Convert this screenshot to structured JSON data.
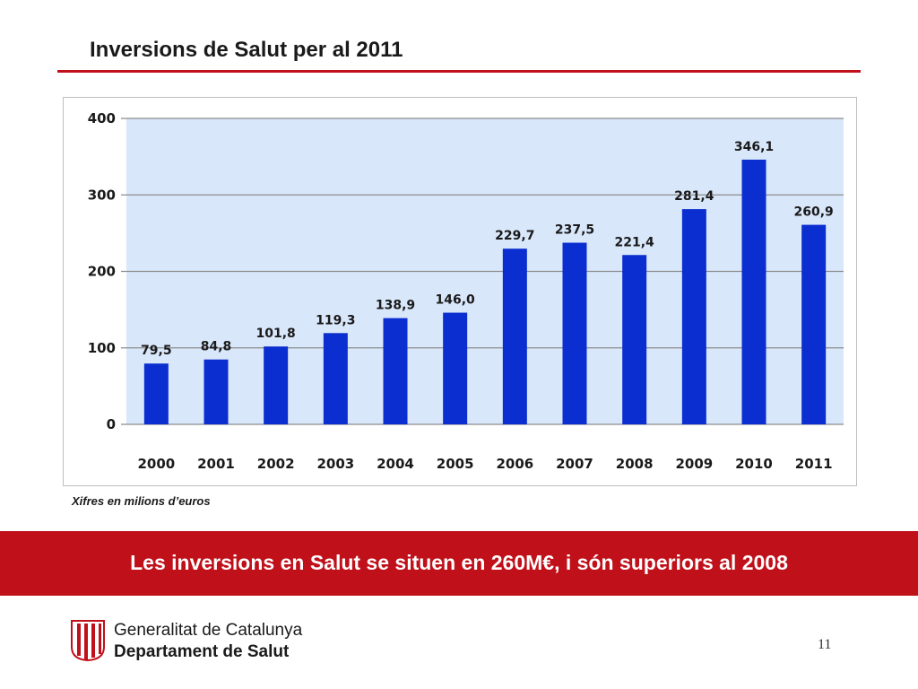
{
  "title": "Inversions de Salut per al 2011",
  "colors": {
    "accent": "#c0101a",
    "bar": "#0a2ecf",
    "plot_background": "#d9e7fb",
    "gridline": "#8c8c8c"
  },
  "chart_data": {
    "type": "bar",
    "categories": [
      "2000",
      "2001",
      "2002",
      "2003",
      "2004",
      "2005",
      "2006",
      "2007",
      "2008",
      "2009",
      "2010",
      "2011"
    ],
    "values": [
      79.5,
      84.8,
      101.8,
      119.3,
      138.9,
      146.0,
      229.7,
      237.5,
      221.4,
      281.4,
      346.1,
      260.9
    ],
    "data_labels": [
      "79,5",
      "84,8",
      "101,8",
      "119,3",
      "138,9",
      "146,0",
      "229,7",
      "237,5",
      "221,4",
      "281,4",
      "346,1",
      "260,9"
    ],
    "yticks": [
      "0",
      "100",
      "200",
      "300",
      "400"
    ],
    "ylim": [
      0,
      400
    ],
    "grid": true,
    "legend": "none",
    "title": "",
    "xlabel": "",
    "ylabel": ""
  },
  "units_note": "Xifres en milions d’euros",
  "banner_text": "Les inversions en Salut se situen en 260M€, i són superiors al 2008",
  "footer": {
    "org_line1": "Generalitat de Catalunya",
    "org_line2": "Departament de Salut",
    "logo_icon": "generalitat-shield-icon",
    "page_number": "11"
  }
}
